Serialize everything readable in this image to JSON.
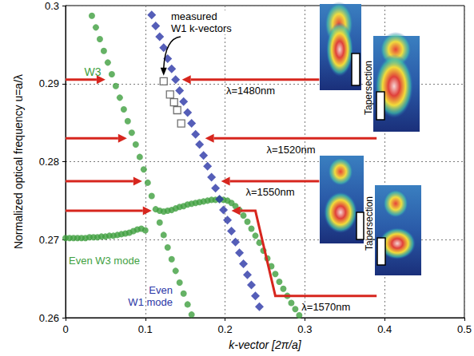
{
  "chart_data": {
    "type": "scatter",
    "xlabel": "k-vector [2π/a]",
    "ylabel": "Normalized optical frequency u=a/λ",
    "xlim": [
      0,
      0.5
    ],
    "xticks": [
      0,
      0.1,
      0.2,
      0.3,
      0.4,
      0.5
    ],
    "ylim": [
      0.26,
      0.3
    ],
    "yticks": [
      0.26,
      0.27,
      0.28,
      0.29,
      0.3
    ],
    "grid": true,
    "series": [
      {
        "name": "W3",
        "color": "#3f9f3f",
        "marker": "circle",
        "x": [
          0.033,
          0.038,
          0.043,
          0.048,
          0.053,
          0.058,
          0.063,
          0.068,
          0.073,
          0.078,
          0.083,
          0.088,
          0.093,
          0.098,
          0.103,
          0.108,
          0.113,
          0.118,
          0.123,
          0.128,
          0.133,
          0.138,
          0.143,
          0.148,
          0.153,
          0.158
        ],
        "values": [
          0.2987,
          0.2972,
          0.2957,
          0.2942,
          0.2927,
          0.2912,
          0.2897,
          0.2882,
          0.2867,
          0.2852,
          0.2837,
          0.2822,
          0.2806,
          0.279,
          0.2773,
          0.2756,
          0.2739,
          0.2722,
          0.2706,
          0.269,
          0.2675,
          0.266,
          0.2645,
          0.2631,
          0.2617,
          0.2604
        ]
      },
      {
        "name": "Even W3 mode",
        "color": "#3f9f3f",
        "marker": "circle",
        "x": [
          0,
          0.005,
          0.01,
          0.015,
          0.02,
          0.025,
          0.03,
          0.035,
          0.04,
          0.045,
          0.05,
          0.055,
          0.06,
          0.065,
          0.07,
          0.075,
          0.08,
          0.085,
          0.09,
          0.095,
          0.1,
          0.118,
          0.123,
          0.128,
          0.133,
          0.138,
          0.143,
          0.148,
          0.153,
          0.158,
          0.163,
          0.168,
          0.173,
          0.178,
          0.183,
          0.188,
          0.193,
          0.198,
          0.203,
          0.208,
          0.213,
          0.218,
          0.223,
          0.228,
          0.233,
          0.238,
          0.243,
          0.248,
          0.253,
          0.258,
          0.263,
          0.268,
          0.273,
          0.278,
          0.283,
          0.288,
          0.293
        ],
        "values": [
          0.2702,
          0.2702,
          0.2702,
          0.2702,
          0.2702,
          0.2702,
          0.2703,
          0.2703,
          0.2703,
          0.2704,
          0.2704,
          0.2705,
          0.2705,
          0.2706,
          0.2707,
          0.2708,
          0.2709,
          0.2711,
          0.2713,
          0.2714,
          0.2712,
          0.2737,
          0.2736,
          0.2737,
          0.2738,
          0.274,
          0.2742,
          0.2743,
          0.2745,
          0.2746,
          0.2747,
          0.2748,
          0.2749,
          0.275,
          0.2751,
          0.2751,
          0.2752,
          0.2751,
          0.275,
          0.2747,
          0.2743,
          0.2738,
          0.2731,
          0.2723,
          0.2714,
          0.2705,
          0.2696,
          0.2686,
          0.2676,
          0.2666,
          0.2656,
          0.2646,
          0.2637,
          0.2628,
          0.2619,
          0.2611,
          0.2603
        ]
      },
      {
        "name": "Even W1 mode",
        "color": "#2a36a6",
        "marker": "diamond",
        "x": [
          0.108,
          0.113,
          0.118,
          0.123,
          0.128,
          0.133,
          0.138,
          0.143,
          0.148,
          0.153,
          0.158,
          0.163,
          0.168,
          0.173,
          0.178,
          0.183,
          0.188,
          0.193,
          0.198,
          0.203,
          0.208,
          0.213,
          0.218,
          0.223,
          0.228,
          0.233,
          0.238,
          0.243
        ],
        "values": [
          0.2988,
          0.2974,
          0.296,
          0.2946,
          0.2932,
          0.2919,
          0.2905,
          0.2891,
          0.2877,
          0.2863,
          0.2849,
          0.2835,
          0.2822,
          0.2808,
          0.2794,
          0.278,
          0.2766,
          0.2752,
          0.2738,
          0.2725,
          0.2711,
          0.2697,
          0.2683,
          0.2669,
          0.2655,
          0.2642,
          0.2628,
          0.2614
        ]
      },
      {
        "name": "measured W1 k-vectors",
        "color": "#4d4d4d",
        "marker": "open_square",
        "x": [
          0.123,
          0.131,
          0.136,
          0.14,
          0.145
        ],
        "values": [
          0.2903,
          0.2886,
          0.2876,
          0.2866,
          0.2849
        ]
      }
    ],
    "wavelength_arrows": [
      {
        "label": "λ=1480nm",
        "left_arrow": [
          [
            0,
            0.2905
          ],
          [
            0.05,
            0.2905
          ]
        ],
        "right_arrow": [
          [
            0.318,
            0.2905
          ],
          [
            0.146,
            0.2905
          ]
        ]
      },
      {
        "label": "λ=1520nm",
        "left_arrow": [
          [
            0,
            0.283
          ],
          [
            0.077,
            0.283
          ]
        ],
        "right_arrow": [
          [
            0.39,
            0.283
          ],
          [
            0.175,
            0.283
          ]
        ]
      },
      {
        "label": "λ=1550nm",
        "left_arrow": [
          [
            0,
            0.2775
          ],
          [
            0.096,
            0.2775
          ]
        ],
        "right_arrow": [
          [
            0.318,
            0.2775
          ],
          [
            0.195,
            0.2775
          ]
        ]
      },
      {
        "label": "λ=1570nm",
        "left_arrow": [
          [
            0,
            0.2737
          ],
          [
            0.108,
            0.2737
          ]
        ],
        "right_arrow": [
          [
            0.39,
            0.2628
          ],
          [
            0.263,
            0.2628
          ],
          [
            0.238,
            0.2737
          ],
          [
            0.208,
            0.2737
          ]
        ]
      }
    ],
    "inset_labels": [
      "Tapersection",
      "Tapersection"
    ]
  }
}
